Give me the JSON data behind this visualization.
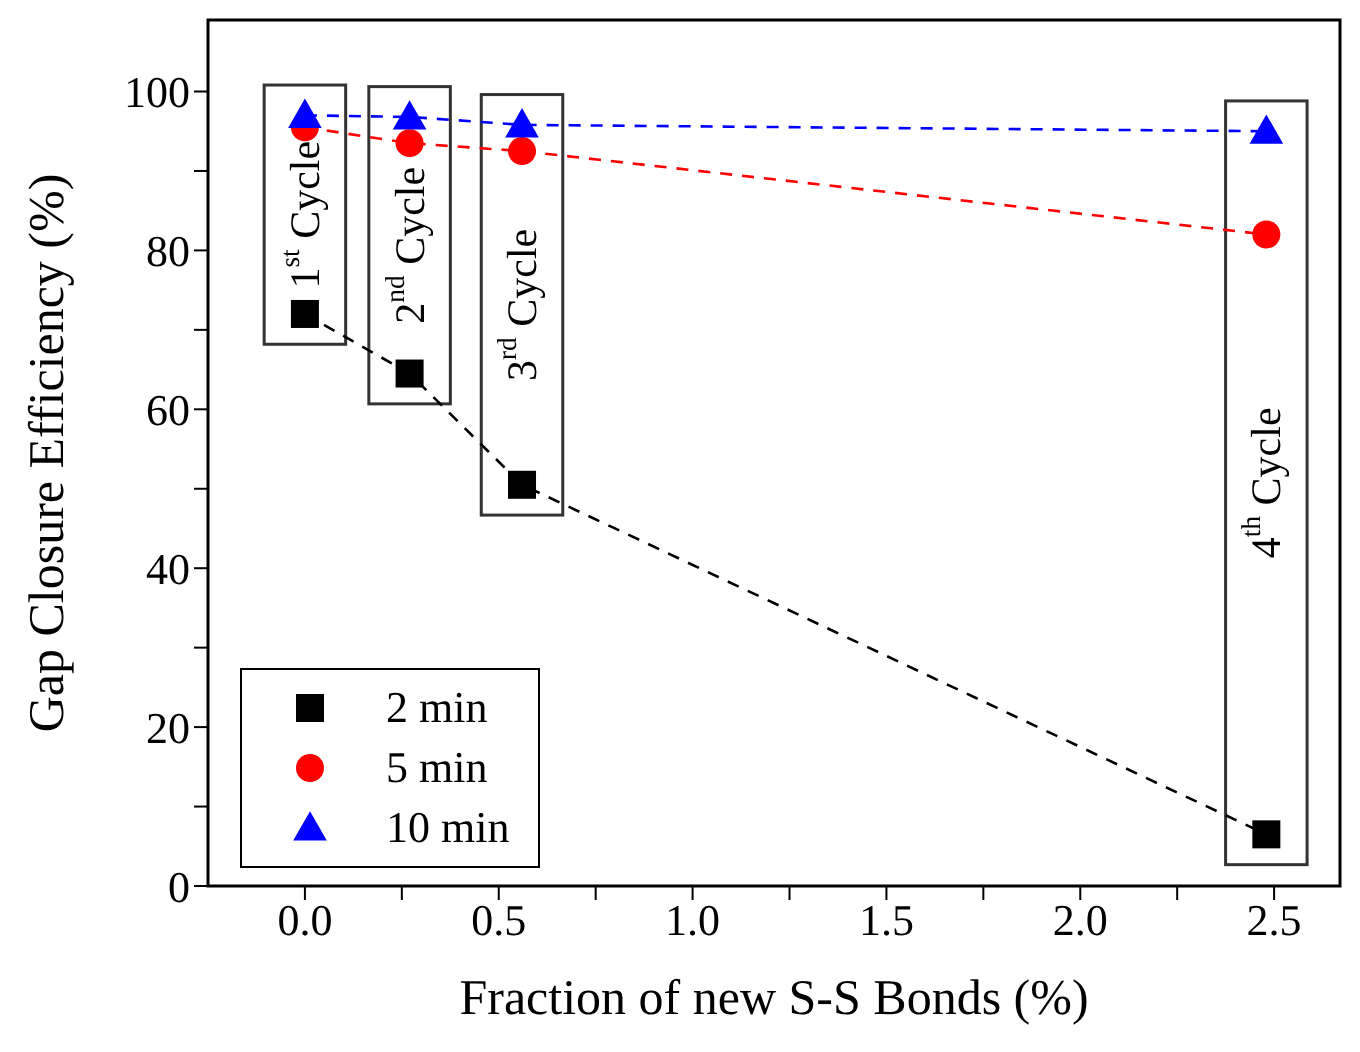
{
  "chart_data": {
    "type": "line",
    "xlabel": "Fraction of new S-S Bonds (%)",
    "ylabel": "Gap Closure Efficiency (%)",
    "x": [
      0.0,
      0.27,
      0.56,
      2.48
    ],
    "series": [
      {
        "name": "2 min",
        "color": "#000000",
        "marker": "square",
        "values": [
          72,
          64.5,
          50.5,
          6.5
        ]
      },
      {
        "name": "5 min",
        "color": "#ff0000",
        "marker": "circle",
        "values": [
          95.5,
          93.5,
          92.5,
          82
        ]
      },
      {
        "name": "10 min",
        "color": "#0000ff",
        "marker": "triangle",
        "values": [
          97,
          96.8,
          95.8,
          95
        ]
      }
    ],
    "line_style": "dashed",
    "xlim": [
      -0.25,
      2.67
    ],
    "ylim": [
      0,
      109
    ],
    "xticks": [
      {
        "value": 0,
        "label": "0.0"
      },
      {
        "value": 0.25,
        "label": null
      },
      {
        "value": 0.5,
        "label": "0.5"
      },
      {
        "value": 0.75,
        "label": null
      },
      {
        "value": 1,
        "label": "1.0"
      },
      {
        "value": 1.25,
        "label": null
      },
      {
        "value": 1.5,
        "label": "1.5"
      },
      {
        "value": 1.75,
        "label": null
      },
      {
        "value": 2,
        "label": "2.0"
      },
      {
        "value": 2.25,
        "label": null
      },
      {
        "value": 2.5,
        "label": "2.5"
      }
    ],
    "yticks": [
      0,
      {
        "value": 10,
        "label": null
      },
      20,
      {
        "value": 30,
        "label": null
      },
      40,
      {
        "value": 50,
        "label": null
      },
      60,
      {
        "value": 70,
        "label": null
      },
      80,
      {
        "value": 90,
        "label": null
      },
      100
    ],
    "annotations": [
      "1$^{st}$ Cycle",
      "2$^{nd}$ Cycle",
      "3$^{rd}$ Cycle",
      "4$^{th}$ Cycle"
    ],
    "grid": false,
    "legend": "bottom left"
  }
}
